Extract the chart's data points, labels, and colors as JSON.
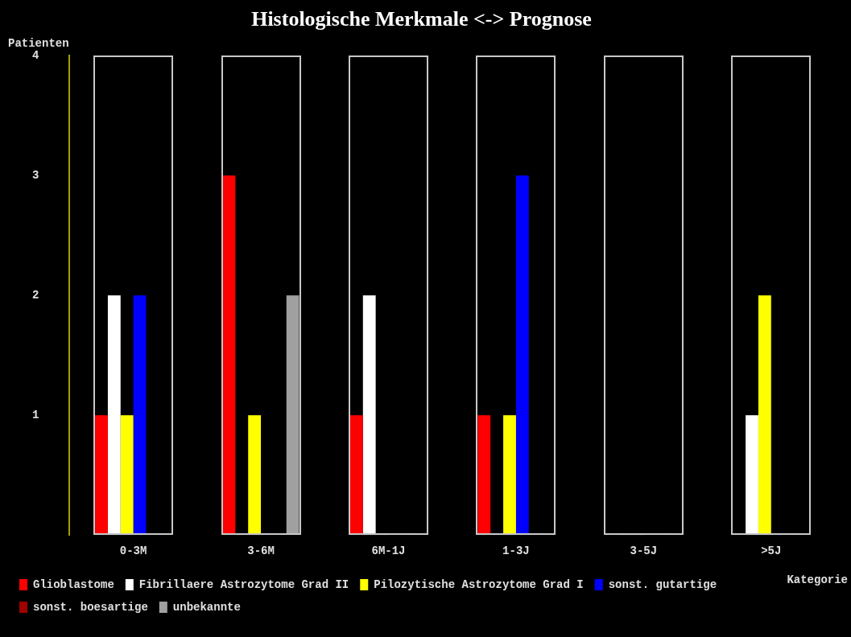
{
  "chart_data": {
    "type": "bar",
    "title": "Histologische Merkmale <-> Prognose",
    "xlabel": "Kategorie",
    "ylabel": "Patienten",
    "categories": [
      "0-3M",
      "3-6M",
      "6M-1J",
      "1-3J",
      "3-5J",
      ">5J"
    ],
    "series": [
      {
        "name": "Glioblastome",
        "color": "#ff0000",
        "values": [
          1,
          3,
          1,
          1,
          0,
          0
        ]
      },
      {
        "name": "Fibrillaere Astrozytome Grad II",
        "color": "#ffffff",
        "values": [
          2,
          0,
          2,
          0,
          0,
          1
        ]
      },
      {
        "name": "Pilozytische Astrozytome Grad I",
        "color": "#ffff00",
        "values": [
          1,
          1,
          0,
          1,
          0,
          2
        ]
      },
      {
        "name": "sonst. gutartige",
        "color": "#0000ff",
        "values": [
          2,
          0,
          0,
          3,
          0,
          0
        ]
      },
      {
        "name": "sonst. boesartige",
        "color": "#a00000",
        "values": [
          0,
          0,
          0,
          0,
          0,
          0
        ]
      },
      {
        "name": "unbekannte",
        "color": "#a0a0a0",
        "values": [
          0,
          2,
          0,
          0,
          0,
          0
        ]
      }
    ],
    "ylim": [
      0,
      4
    ],
    "yticks": [
      1,
      2,
      3,
      4
    ],
    "grid": false,
    "legend": "bottom left"
  }
}
